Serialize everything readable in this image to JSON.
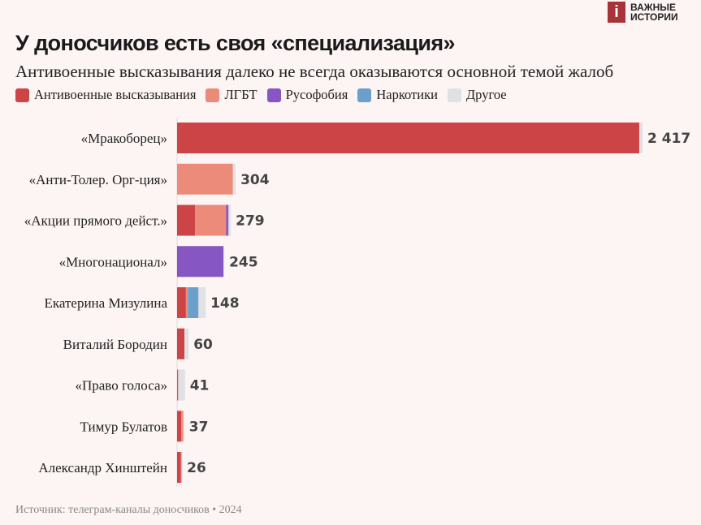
{
  "logo": {
    "mark": "i",
    "text": "ВАЖНЫЕ ИСТОРИИ"
  },
  "chart_data": {
    "type": "bar",
    "orientation": "horizontal",
    "stacked": true,
    "title": "У доносчиков есть своя «специализация»",
    "subtitle": "Антивоенные высказывания далеко не всегда оказываются основной темой жалоб",
    "source": "Источник: телеграм-каналы доносчиков • 2024",
    "legend_position": "top-left",
    "grid": false,
    "categories": [
      "«Мракоборец»",
      "«Анти-Толер. Орг-ция»",
      "«Акции прямого дейст.»",
      "«Многонационал»",
      "Екатерина Мизулина",
      "Виталий Бородин",
      "«Право голоса»",
      "Тимур Булатов",
      "Александр Хинштейн"
    ],
    "totals": [
      2417,
      304,
      279,
      245,
      148,
      60,
      41,
      37,
      26
    ],
    "total_labels": [
      "2 417",
      "304",
      "279",
      "245",
      "148",
      "60",
      "41",
      "37",
      "26"
    ],
    "series": [
      {
        "name": "Антивоенные высказывания",
        "color": "#cc4446",
        "values": [
          2400,
          0,
          93,
          4,
          46,
          38,
          3,
          22,
          20
        ]
      },
      {
        "name": "ЛГБТ",
        "color": "#ec8b7a",
        "values": [
          0,
          290,
          162,
          0,
          10,
          0,
          3,
          10,
          4
        ]
      },
      {
        "name": "Русофобия",
        "color": "#8656c2",
        "values": [
          0,
          0,
          12,
          237,
          0,
          0,
          0,
          0,
          0
        ]
      },
      {
        "name": "Наркотики",
        "color": "#6aa0cb",
        "values": [
          0,
          0,
          0,
          0,
          55,
          0,
          0,
          0,
          0
        ]
      },
      {
        "name": "Другое",
        "color": "#dfe1e4",
        "values": [
          17,
          14,
          12,
          4,
          37,
          22,
          35,
          5,
          2
        ]
      }
    ]
  }
}
